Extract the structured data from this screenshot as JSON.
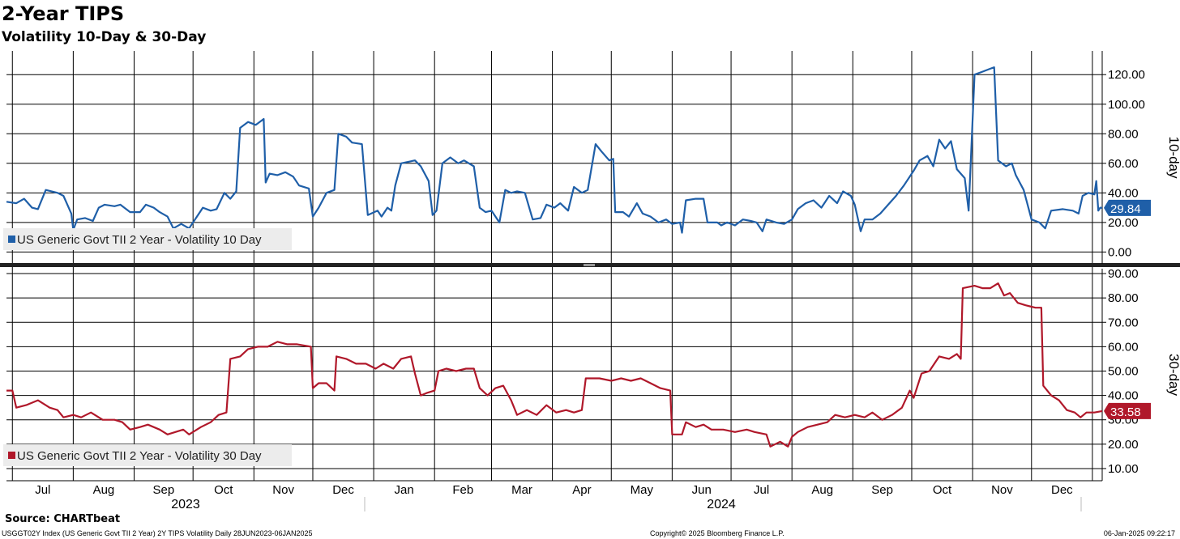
{
  "header": {
    "title": "2-Year TIPS",
    "subtitle": "Volatility 10-Day & 30-Day"
  },
  "footer": {
    "source": "Source: CHARTbeat",
    "left": "USGGT02Y Index (US Generic Govt TII 2 Year) 2Y TIPS Volatility  Daily 28JUN2023-06JAN2025",
    "center": "Copyright© 2025 Bloomberg Finance L.P.",
    "right": "06-Jan-2025 09:22:17"
  },
  "colors": {
    "series10": "#1f5fa8",
    "series30": "#b0182a",
    "grid": "#000000",
    "legend_bg": "#ececec"
  },
  "chart_data": [
    {
      "type": "line",
      "name": "10-day",
      "axis_label": "10-day",
      "ylim": [
        -8,
        136
      ],
      "yticks": [
        "0.00",
        "20.00",
        "40.00",
        "60.00",
        "80.00",
        "100.00",
        "120.00"
      ],
      "ytick_values": [
        0,
        20,
        40,
        60,
        80,
        100,
        120
      ],
      "last_value": 29.84,
      "last_label": "29.84",
      "legend": "US Generic Govt TII 2 Year - Volatility 10 Day",
      "x_start": "2023-06-28",
      "x_end": "2025-01-06",
      "points": [
        [
          "2023-06-28",
          34
        ],
        [
          "2023-07-03",
          33
        ],
        [
          "2023-07-07",
          36
        ],
        [
          "2023-07-11",
          30
        ],
        [
          "2023-07-14",
          29
        ],
        [
          "2023-07-18",
          42
        ],
        [
          "2023-07-24",
          40
        ],
        [
          "2023-07-27",
          38
        ],
        [
          "2023-07-31",
          26
        ],
        [
          "2023-08-01",
          15
        ],
        [
          "2023-08-03",
          22
        ],
        [
          "2023-08-07",
          23
        ],
        [
          "2023-08-11",
          21
        ],
        [
          "2023-08-14",
          30
        ],
        [
          "2023-08-17",
          32
        ],
        [
          "2023-08-22",
          31
        ],
        [
          "2023-08-25",
          32
        ],
        [
          "2023-08-30",
          27
        ],
        [
          "2023-09-04",
          27
        ],
        [
          "2023-09-07",
          32
        ],
        [
          "2023-09-11",
          30
        ],
        [
          "2023-09-14",
          27
        ],
        [
          "2023-09-18",
          24
        ],
        [
          "2023-09-21",
          16
        ],
        [
          "2023-09-25",
          19
        ],
        [
          "2023-09-29",
          16
        ],
        [
          "2023-10-03",
          24
        ],
        [
          "2023-10-06",
          30
        ],
        [
          "2023-10-10",
          28
        ],
        [
          "2023-10-13",
          29
        ],
        [
          "2023-10-17",
          40
        ],
        [
          "2023-10-20",
          36
        ],
        [
          "2023-10-23",
          41
        ],
        [
          "2023-10-25",
          84
        ],
        [
          "2023-10-29",
          88
        ],
        [
          "2023-11-02",
          86
        ],
        [
          "2023-11-06",
          90
        ],
        [
          "2023-11-07",
          47
        ],
        [
          "2023-11-09",
          53
        ],
        [
          "2023-11-13",
          52
        ],
        [
          "2023-11-17",
          54
        ],
        [
          "2023-11-21",
          51
        ],
        [
          "2023-11-24",
          45
        ],
        [
          "2023-11-29",
          43
        ],
        [
          "2023-12-01",
          24
        ],
        [
          "2023-12-04",
          30
        ],
        [
          "2023-12-08",
          40
        ],
        [
          "2023-12-12",
          42
        ],
        [
          "2023-12-14",
          80
        ],
        [
          "2023-12-18",
          78
        ],
        [
          "2023-12-21",
          74
        ],
        [
          "2023-12-26",
          73
        ],
        [
          "2023-12-29",
          25
        ],
        [
          "2024-01-03",
          28
        ],
        [
          "2024-01-05",
          24
        ],
        [
          "2024-01-08",
          30
        ],
        [
          "2024-01-10",
          28
        ],
        [
          "2024-01-12",
          45
        ],
        [
          "2024-01-15",
          60
        ],
        [
          "2024-01-22",
          62
        ],
        [
          "2024-01-25",
          58
        ],
        [
          "2024-01-29",
          48
        ],
        [
          "2024-01-31",
          25
        ],
        [
          "2024-02-02",
          28
        ],
        [
          "2024-02-05",
          60
        ],
        [
          "2024-02-09",
          64
        ],
        [
          "2024-02-13",
          60
        ],
        [
          "2024-02-16",
          62
        ],
        [
          "2024-02-21",
          58
        ],
        [
          "2024-02-24",
          30
        ],
        [
          "2024-02-27",
          27
        ],
        [
          "2024-03-01",
          28
        ],
        [
          "2024-03-05",
          20
        ],
        [
          "2024-03-08",
          42
        ],
        [
          "2024-03-11",
          40
        ],
        [
          "2024-03-14",
          41
        ],
        [
          "2024-03-18",
          40
        ],
        [
          "2024-03-22",
          22
        ],
        [
          "2024-03-26",
          23
        ],
        [
          "2024-03-29",
          32
        ],
        [
          "2024-04-02",
          30
        ],
        [
          "2024-04-05",
          33
        ],
        [
          "2024-04-09",
          28
        ],
        [
          "2024-04-12",
          44
        ],
        [
          "2024-04-16",
          40
        ],
        [
          "2024-04-19",
          42
        ],
        [
          "2024-04-23",
          73
        ],
        [
          "2024-04-26",
          68
        ],
        [
          "2024-04-30",
          62
        ],
        [
          "2024-05-02",
          63
        ],
        [
          "2024-05-03",
          27
        ],
        [
          "2024-05-07",
          27
        ],
        [
          "2024-05-10",
          24
        ],
        [
          "2024-05-14",
          33
        ],
        [
          "2024-05-17",
          26
        ],
        [
          "2024-05-21",
          24
        ],
        [
          "2024-05-25",
          20
        ],
        [
          "2024-05-29",
          22
        ],
        [
          "2024-06-01",
          19
        ],
        [
          "2024-06-05",
          20
        ],
        [
          "2024-06-06",
          13
        ],
        [
          "2024-06-08",
          35
        ],
        [
          "2024-06-13",
          36
        ],
        [
          "2024-06-17",
          36
        ],
        [
          "2024-06-19",
          20
        ],
        [
          "2024-06-24",
          20
        ],
        [
          "2024-06-26",
          18
        ],
        [
          "2024-06-29",
          20
        ],
        [
          "2024-07-03",
          18
        ],
        [
          "2024-07-07",
          22
        ],
        [
          "2024-07-11",
          21
        ],
        [
          "2024-07-14",
          20
        ],
        [
          "2024-07-17",
          14
        ],
        [
          "2024-07-19",
          22
        ],
        [
          "2024-07-24",
          20
        ],
        [
          "2024-07-28",
          19
        ],
        [
          "2024-08-01",
          22
        ],
        [
          "2024-08-04",
          29
        ],
        [
          "2024-08-08",
          33
        ],
        [
          "2024-08-12",
          35
        ],
        [
          "2024-08-16",
          30
        ],
        [
          "2024-08-20",
          38
        ],
        [
          "2024-08-24",
          33
        ],
        [
          "2024-08-27",
          41
        ],
        [
          "2024-08-31",
          38
        ],
        [
          "2024-09-02",
          32
        ],
        [
          "2024-09-05",
          14
        ],
        [
          "2024-09-07",
          22
        ],
        [
          "2024-09-11",
          22
        ],
        [
          "2024-09-15",
          26
        ],
        [
          "2024-09-19",
          32
        ],
        [
          "2024-09-23",
          38
        ],
        [
          "2024-09-27",
          45
        ],
        [
          "2024-10-02",
          55
        ],
        [
          "2024-10-05",
          62
        ],
        [
          "2024-10-09",
          65
        ],
        [
          "2024-10-12",
          58
        ],
        [
          "2024-10-15",
          76
        ],
        [
          "2024-10-18",
          70
        ],
        [
          "2024-10-21",
          75
        ],
        [
          "2024-10-24",
          56
        ],
        [
          "2024-10-28",
          50
        ],
        [
          "2024-10-30",
          28
        ],
        [
          "2024-11-02",
          120
        ],
        [
          "2024-11-06",
          122
        ],
        [
          "2024-11-10",
          124
        ],
        [
          "2024-11-12",
          125
        ],
        [
          "2024-11-14",
          62
        ],
        [
          "2024-11-18",
          58
        ],
        [
          "2024-11-21",
          60
        ],
        [
          "2024-11-23",
          52
        ],
        [
          "2024-11-27",
          42
        ],
        [
          "2024-12-01",
          22
        ],
        [
          "2024-12-05",
          20
        ],
        [
          "2024-12-08",
          16
        ],
        [
          "2024-12-11",
          28
        ],
        [
          "2024-12-17",
          29
        ],
        [
          "2024-12-22",
          28
        ],
        [
          "2024-12-25",
          26
        ],
        [
          "2024-12-27",
          38
        ],
        [
          "2024-12-30",
          40
        ],
        [
          "2025-01-02",
          39
        ],
        [
          "2025-01-03",
          48
        ],
        [
          "2025-01-04",
          28
        ],
        [
          "2025-01-05",
          30
        ],
        [
          "2025-01-06",
          29.84
        ]
      ]
    },
    {
      "type": "line",
      "name": "30-day",
      "axis_label": "30-day",
      "ylim": [
        5,
        92
      ],
      "yticks": [
        "10.00",
        "20.00",
        "30.00",
        "40.00",
        "50.00",
        "60.00",
        "70.00",
        "80.00",
        "90.00"
      ],
      "ytick_values": [
        10,
        20,
        30,
        40,
        50,
        60,
        70,
        80,
        90
      ],
      "last_value": 33.58,
      "last_label": "33.58",
      "legend": "US Generic Govt TII 2 Year - Volatility 30 Day",
      "x_start": "2023-06-28",
      "x_end": "2025-01-06",
      "points": [
        [
          "2023-06-28",
          42
        ],
        [
          "2023-07-01",
          42
        ],
        [
          "2023-07-03",
          35
        ],
        [
          "2023-07-08",
          36
        ],
        [
          "2023-07-14",
          38
        ],
        [
          "2023-07-20",
          35
        ],
        [
          "2023-07-24",
          34
        ],
        [
          "2023-07-27",
          31
        ],
        [
          "2023-08-01",
          32
        ],
        [
          "2023-08-05",
          31
        ],
        [
          "2023-08-10",
          33
        ],
        [
          "2023-08-16",
          30
        ],
        [
          "2023-08-22",
          30
        ],
        [
          "2023-08-26",
          29
        ],
        [
          "2023-08-30",
          26
        ],
        [
          "2023-09-04",
          27
        ],
        [
          "2023-09-08",
          28
        ],
        [
          "2023-09-14",
          26
        ],
        [
          "2023-09-18",
          24
        ],
        [
          "2023-09-22",
          25
        ],
        [
          "2023-09-26",
          26
        ],
        [
          "2023-09-29",
          24
        ],
        [
          "2023-10-05",
          27
        ],
        [
          "2023-10-10",
          29
        ],
        [
          "2023-10-14",
          32
        ],
        [
          "2023-10-18",
          33
        ],
        [
          "2023-10-20",
          55
        ],
        [
          "2023-10-25",
          56
        ],
        [
          "2023-10-29",
          59
        ],
        [
          "2023-11-03",
          60
        ],
        [
          "2023-11-08",
          60
        ],
        [
          "2023-11-13",
          62
        ],
        [
          "2023-11-18",
          61
        ],
        [
          "2023-11-23",
          61
        ],
        [
          "2023-11-30",
          60
        ],
        [
          "2023-12-01",
          43
        ],
        [
          "2023-12-04",
          45
        ],
        [
          "2023-12-08",
          45
        ],
        [
          "2023-12-12",
          42
        ],
        [
          "2023-12-13",
          56
        ],
        [
          "2023-12-18",
          55
        ],
        [
          "2023-12-23",
          53
        ],
        [
          "2023-12-28",
          53
        ],
        [
          "2024-01-02",
          51
        ],
        [
          "2024-01-06",
          53
        ],
        [
          "2024-01-11",
          51
        ],
        [
          "2024-01-15",
          55
        ],
        [
          "2024-01-20",
          56
        ],
        [
          "2024-01-22",
          49
        ],
        [
          "2024-01-25",
          40
        ],
        [
          "2024-01-28",
          41
        ],
        [
          "2024-02-01",
          42
        ],
        [
          "2024-02-03",
          50
        ],
        [
          "2024-02-07",
          51
        ],
        [
          "2024-02-12",
          50
        ],
        [
          "2024-02-17",
          51
        ],
        [
          "2024-02-21",
          51
        ],
        [
          "2024-02-24",
          43
        ],
        [
          "2024-02-28",
          40
        ],
        [
          "2024-03-03",
          43
        ],
        [
          "2024-03-07",
          44
        ],
        [
          "2024-03-11",
          38
        ],
        [
          "2024-03-14",
          32
        ],
        [
          "2024-03-19",
          34
        ],
        [
          "2024-03-24",
          32
        ],
        [
          "2024-03-29",
          36
        ],
        [
          "2024-04-03",
          33
        ],
        [
          "2024-04-08",
          34
        ],
        [
          "2024-04-12",
          33
        ],
        [
          "2024-04-16",
          34
        ],
        [
          "2024-04-18",
          47
        ],
        [
          "2024-04-25",
          47
        ],
        [
          "2024-05-01",
          46
        ],
        [
          "2024-05-06",
          47
        ],
        [
          "2024-05-11",
          46
        ],
        [
          "2024-05-16",
          47
        ],
        [
          "2024-05-21",
          45
        ],
        [
          "2024-05-26",
          43
        ],
        [
          "2024-05-31",
          42
        ],
        [
          "2024-06-01",
          24
        ],
        [
          "2024-06-06",
          24
        ],
        [
          "2024-06-08",
          29
        ],
        [
          "2024-06-13",
          27
        ],
        [
          "2024-06-17",
          28
        ],
        [
          "2024-06-21",
          26
        ],
        [
          "2024-06-27",
          26
        ],
        [
          "2024-07-03",
          25
        ],
        [
          "2024-07-09",
          26
        ],
        [
          "2024-07-13",
          25
        ],
        [
          "2024-07-19",
          24
        ],
        [
          "2024-07-21",
          19
        ],
        [
          "2024-07-26",
          21
        ],
        [
          "2024-07-30",
          19
        ],
        [
          "2024-08-01",
          23
        ],
        [
          "2024-08-04",
          25
        ],
        [
          "2024-08-09",
          27
        ],
        [
          "2024-08-14",
          28
        ],
        [
          "2024-08-19",
          29
        ],
        [
          "2024-08-23",
          32
        ],
        [
          "2024-08-28",
          31
        ],
        [
          "2024-09-02",
          32
        ],
        [
          "2024-09-07",
          31
        ],
        [
          "2024-09-11",
          33
        ],
        [
          "2024-09-16",
          30
        ],
        [
          "2024-09-21",
          32
        ],
        [
          "2024-09-26",
          35
        ],
        [
          "2024-09-30",
          42
        ],
        [
          "2024-10-02",
          39
        ],
        [
          "2024-10-06",
          49
        ],
        [
          "2024-10-10",
          50
        ],
        [
          "2024-10-15",
          56
        ],
        [
          "2024-10-20",
          55
        ],
        [
          "2024-10-24",
          57
        ],
        [
          "2024-10-26",
          55
        ],
        [
          "2024-10-27",
          84
        ],
        [
          "2024-11-02",
          85
        ],
        [
          "2024-11-06",
          84
        ],
        [
          "2024-11-10",
          84
        ],
        [
          "2024-11-14",
          86
        ],
        [
          "2024-11-17",
          81
        ],
        [
          "2024-11-20",
          82
        ],
        [
          "2024-11-24",
          78
        ],
        [
          "2024-11-28",
          77
        ],
        [
          "2024-12-03",
          76
        ],
        [
          "2024-12-06",
          76
        ],
        [
          "2024-12-07",
          44
        ],
        [
          "2024-12-11",
          40
        ],
        [
          "2024-12-15",
          38
        ],
        [
          "2024-12-19",
          34
        ],
        [
          "2024-12-23",
          33
        ],
        [
          "2024-12-26",
          31
        ],
        [
          "2024-12-29",
          33
        ],
        [
          "2025-01-02",
          33
        ],
        [
          "2025-01-06",
          33.58
        ]
      ]
    }
  ],
  "x_axis": {
    "months": [
      "Jul",
      "Aug",
      "Sep",
      "Oct",
      "Nov",
      "Dec",
      "Jan",
      "Feb",
      "Mar",
      "Apr",
      "May",
      "Jun",
      "Jul",
      "Aug",
      "Sep",
      "Oct",
      "Nov",
      "Dec"
    ],
    "years": [
      "2023",
      "2024"
    ]
  }
}
